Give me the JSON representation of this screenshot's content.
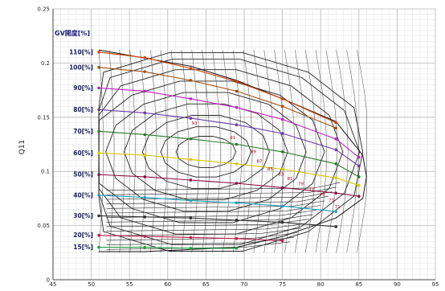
{
  "chart_data": {
    "type": "line",
    "title": "",
    "legend_title": "GV開度[%]",
    "xlabel": "",
    "ylabel": "Q11",
    "xlim": [
      45,
      95
    ],
    "ylim": [
      0,
      0.25
    ],
    "x_ticks": [
      "45",
      "50",
      "55",
      "60",
      "65",
      "70",
      "75",
      "80",
      "85",
      "90",
      "95"
    ],
    "y_ticks": [
      "0",
      "0.05",
      "0.1",
      "0.15",
      "0.2",
      "0.25"
    ],
    "grid": true,
    "series": [
      {
        "name": "110[%]",
        "color": "#d04000",
        "x": [
          51,
          57,
          63,
          69,
          75,
          82
        ],
        "y": [
          0.21,
          0.205,
          0.195,
          0.183,
          0.167,
          0.145
        ]
      },
      {
        "name": "100[%]",
        "color": "#a05010",
        "x": [
          51,
          57,
          63,
          69,
          75,
          82
        ],
        "y": [
          0.196,
          0.192,
          0.184,
          0.174,
          0.16,
          0.14
        ]
      },
      {
        "name": "90[%]",
        "color": "#c020c0",
        "x": [
          51,
          57,
          63,
          69,
          75,
          82,
          85
        ],
        "y": [
          0.177,
          0.174,
          0.167,
          0.159,
          0.148,
          0.13,
          0.113
        ]
      },
      {
        "name": "80[%]",
        "color": "#6a3aa8",
        "x": [
          51,
          57,
          63,
          69,
          75,
          82,
          85
        ],
        "y": [
          0.157,
          0.154,
          0.149,
          0.143,
          0.135,
          0.12,
          0.105
        ]
      },
      {
        "name": "70[%]",
        "color": "#2a7a2a",
        "x": [
          51,
          57,
          63,
          69,
          75,
          82,
          85
        ],
        "y": [
          0.137,
          0.134,
          0.13,
          0.125,
          0.118,
          0.107,
          0.095
        ]
      },
      {
        "name": "60[%]",
        "color": "#d8c800",
        "x": [
          51,
          57,
          63,
          69,
          75,
          82,
          85
        ],
        "y": [
          0.117,
          0.115,
          0.111,
          0.107,
          0.102,
          0.094,
          0.087
        ]
      },
      {
        "name": "50[%]",
        "color": "#8a1040",
        "x": [
          51,
          57,
          63,
          69,
          75,
          82,
          85
        ],
        "y": [
          0.097,
          0.095,
          0.092,
          0.089,
          0.085,
          0.08,
          0.077
        ]
      },
      {
        "name": "40[%]",
        "color": "#20a0c0",
        "x": [
          51,
          57,
          63,
          69,
          75,
          82
        ],
        "y": [
          0.078,
          0.076,
          0.073,
          0.071,
          0.068,
          0.063
        ]
      },
      {
        "name": "30[%]",
        "color": "#303030",
        "x": [
          51,
          57,
          63,
          69,
          75,
          82
        ],
        "y": [
          0.059,
          0.058,
          0.057,
          0.055,
          0.053,
          0.049
        ]
      },
      {
        "name": "20[%]",
        "color": "#c02050",
        "x": [
          51,
          57,
          63,
          69,
          75
        ],
        "y": [
          0.041,
          0.04,
          0.039,
          0.038,
          0.036
        ]
      },
      {
        "name": "15[%]",
        "color": "#20a040",
        "x": [
          51,
          57,
          63,
          69
        ],
        "y": [
          0.03,
          0.03,
          0.029,
          0.029
        ]
      }
    ],
    "annotations": [
      {
        "text": "93",
        "x": 63.5,
        "y": 0.143
      },
      {
        "text": "91",
        "x": 68.5,
        "y": 0.13
      },
      {
        "text": "89",
        "x": 71.2,
        "y": 0.117
      },
      {
        "text": "87",
        "x": 72.0,
        "y": 0.108
      },
      {
        "text": "85",
        "x": 73.4,
        "y": 0.101
      },
      {
        "text": "83",
        "x": 74.8,
        "y": 0.096
      },
      {
        "text": "81",
        "x": 76.0,
        "y": 0.092
      },
      {
        "text": "79",
        "x": 77.4,
        "y": 0.087
      },
      {
        "text": "77",
        "x": 78.8,
        "y": 0.082
      },
      {
        "text": "75",
        "x": 80.2,
        "y": 0.077
      },
      {
        "text": "73",
        "x": 81.4,
        "y": 0.072
      },
      {
        "text": "71",
        "x": 82.2,
        "y": 0.066
      }
    ]
  }
}
